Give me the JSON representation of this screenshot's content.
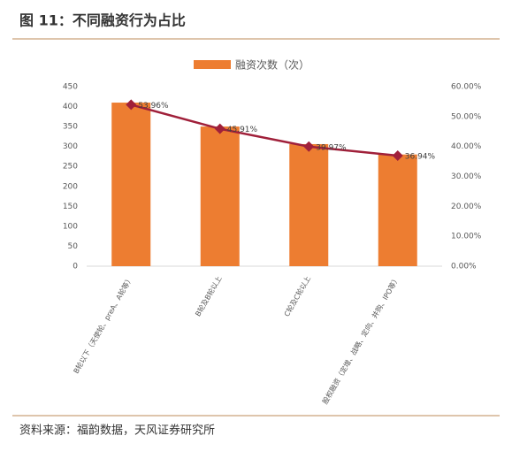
{
  "chart_data": {
    "type": "bar",
    "title": "图 11：不同融资行为占比",
    "source": "资料来源：福韵数据，天风证券研究所",
    "categories": [
      "B轮以下（天使轮、preA、A轮等）",
      "B轮及B轮以上",
      "C轮及C轮以上",
      "股权融资（定增、战略、定向、并购、IPO等）"
    ],
    "series": [
      {
        "type": "bar",
        "name": "融资次数（次）",
        "color": "#ED7D31",
        "values": [
          410,
          350,
          306,
          280
        ]
      },
      {
        "type": "line",
        "axis": "y2",
        "color": "#A0203A",
        "values": [
          53.96,
          45.91,
          39.97,
          36.94
        ],
        "value_labels": [
          "53.96%",
          "45.91%",
          "39.97%",
          "36.94%"
        ]
      }
    ],
    "ylim": [
      0,
      450
    ],
    "yticks": [
      0,
      50,
      100,
      150,
      200,
      250,
      300,
      350,
      400,
      450
    ],
    "y2lim": [
      0,
      60
    ],
    "y2ticks": [
      {
        "value": 0,
        "label": "0.00%"
      },
      {
        "value": 10,
        "label": "10.00%"
      },
      {
        "value": 20,
        "label": "20.00%"
      },
      {
        "value": 30,
        "label": "30.00%"
      },
      {
        "value": 40,
        "label": "40.00%"
      },
      {
        "value": 50,
        "label": "50.00%"
      },
      {
        "value": 60,
        "label": "60.00%"
      }
    ],
    "legend": "top",
    "grid": false
  }
}
